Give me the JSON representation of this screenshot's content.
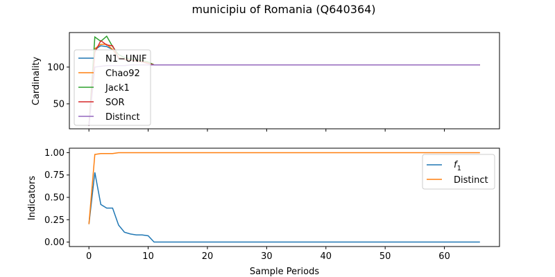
{
  "figure": {
    "title": "municipiu of Romania (Q640364)",
    "xlabel": "Sample Periods"
  },
  "chart_data": [
    {
      "type": "line",
      "ylabel": "Cardinality",
      "xlim": [
        -3.3,
        69.3
      ],
      "ylim": [
        16,
        147
      ],
      "xticks": [
        0,
        10,
        20,
        30,
        40,
        50,
        60
      ],
      "yticks": [
        50,
        100
      ],
      "legend_position": "upper-left",
      "series": [
        {
          "name": "N1−UNIF",
          "color": "#1f77b4",
          "x": [
            0,
            1,
            2,
            3,
            4,
            5,
            6,
            7,
            8,
            9,
            10,
            11,
            66
          ],
          "y": [
            20,
            124,
            129,
            128,
            124,
            112,
            110,
            109,
            108,
            107,
            105,
            103,
            103
          ]
        },
        {
          "name": "Chao92",
          "color": "#ff7f0e",
          "x": [
            0,
            1,
            2,
            3,
            4,
            5,
            6,
            7,
            8,
            9,
            10,
            11,
            66
          ],
          "y": [
            20,
            125,
            131,
            131,
            124,
            113,
            111,
            110,
            109,
            108,
            106,
            103,
            103
          ]
        },
        {
          "name": "Jack1",
          "color": "#2ca02c",
          "x": [
            0,
            1,
            2,
            3,
            4,
            5,
            6,
            7,
            8,
            9,
            10,
            11,
            66
          ],
          "y": [
            20,
            141,
            135,
            142,
            128,
            117,
            113,
            111,
            110,
            109,
            107,
            103,
            103
          ]
        },
        {
          "name": "SOR",
          "color": "#d62728",
          "x": [
            0,
            1,
            2,
            3,
            4,
            5,
            6,
            7,
            8,
            9,
            10,
            11,
            66
          ],
          "y": [
            20,
            120,
            136,
            130,
            129,
            112,
            110,
            109,
            108,
            107,
            105,
            103,
            103
          ]
        },
        {
          "name": "Distinct",
          "color": "#9467bd",
          "x": [
            0,
            1,
            2,
            3,
            4,
            5,
            6,
            7,
            8,
            9,
            10,
            11,
            66
          ],
          "y": [
            20,
            100,
            101,
            102,
            102,
            102,
            102,
            103,
            103,
            103,
            103,
            103,
            103
          ]
        }
      ]
    },
    {
      "type": "line",
      "ylabel": "Indicators",
      "xlim": [
        -3.3,
        69.3
      ],
      "ylim": [
        -0.05,
        1.05
      ],
      "xticks": [
        0,
        10,
        20,
        30,
        40,
        50,
        60
      ],
      "yticks": [
        "0.00",
        "0.25",
        "0.50",
        "0.75",
        "1.00"
      ],
      "legend_position": "upper-right",
      "series": [
        {
          "name": "f1",
          "name_main": "f",
          "name_sub": "1",
          "color": "#1f77b4",
          "x": [
            0,
            1,
            2,
            3,
            4,
            5,
            6,
            7,
            8,
            9,
            10,
            11,
            66
          ],
          "y": [
            0.2,
            0.78,
            0.42,
            0.38,
            0.38,
            0.19,
            0.11,
            0.09,
            0.08,
            0.08,
            0.07,
            0.0,
            0.0
          ]
        },
        {
          "name": "Distinct",
          "color": "#ff7f0e",
          "x": [
            0,
            1,
            2,
            3,
            4,
            5,
            6,
            7,
            8,
            9,
            10,
            11,
            66
          ],
          "y": [
            0.2,
            0.98,
            0.99,
            0.99,
            0.99,
            1.0,
            1.0,
            1.0,
            1.0,
            1.0,
            1.0,
            1.0,
            1.0
          ]
        }
      ]
    }
  ]
}
